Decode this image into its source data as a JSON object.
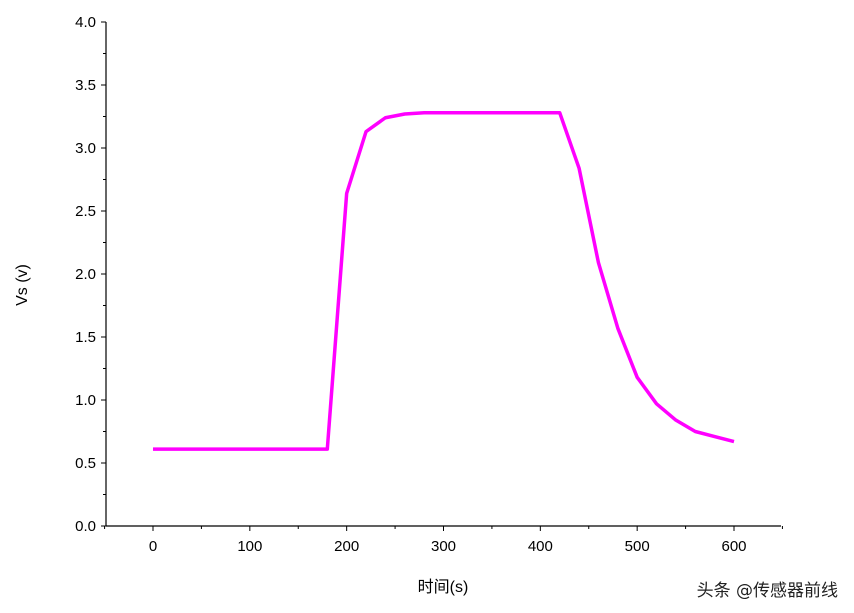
{
  "chart_data": {
    "type": "line",
    "title": "",
    "xlabel": "时间(s)",
    "ylabel": "Vs (v)",
    "xlim": [
      -50,
      650
    ],
    "ylim": [
      0,
      4.0
    ],
    "xticks": [
      "0",
      "100",
      "200",
      "300",
      "400",
      "500",
      "600"
    ],
    "yticks": [
      "0.0",
      "0.5",
      "1.0",
      "1.5",
      "2.0",
      "2.5",
      "3.0",
      "3.5",
      "4.0"
    ],
    "grid": false,
    "series": [
      {
        "color": "#ff00ff",
        "x": [
          0,
          20,
          40,
          60,
          80,
          100,
          120,
          140,
          160,
          180,
          200,
          220,
          240,
          260,
          280,
          300,
          320,
          340,
          360,
          380,
          400,
          420,
          440,
          460,
          480,
          500,
          520,
          540,
          560,
          580,
          600
        ],
        "y": [
          0.61,
          0.61,
          0.61,
          0.61,
          0.61,
          0.61,
          0.61,
          0.61,
          0.61,
          0.61,
          2.64,
          3.13,
          3.24,
          3.27,
          3.28,
          3.28,
          3.28,
          3.28,
          3.28,
          3.28,
          3.28,
          3.28,
          2.84,
          2.09,
          1.57,
          1.18,
          0.97,
          0.84,
          0.75,
          0.71,
          0.67
        ]
      }
    ]
  },
  "watermark": "头条 @传感器前线"
}
